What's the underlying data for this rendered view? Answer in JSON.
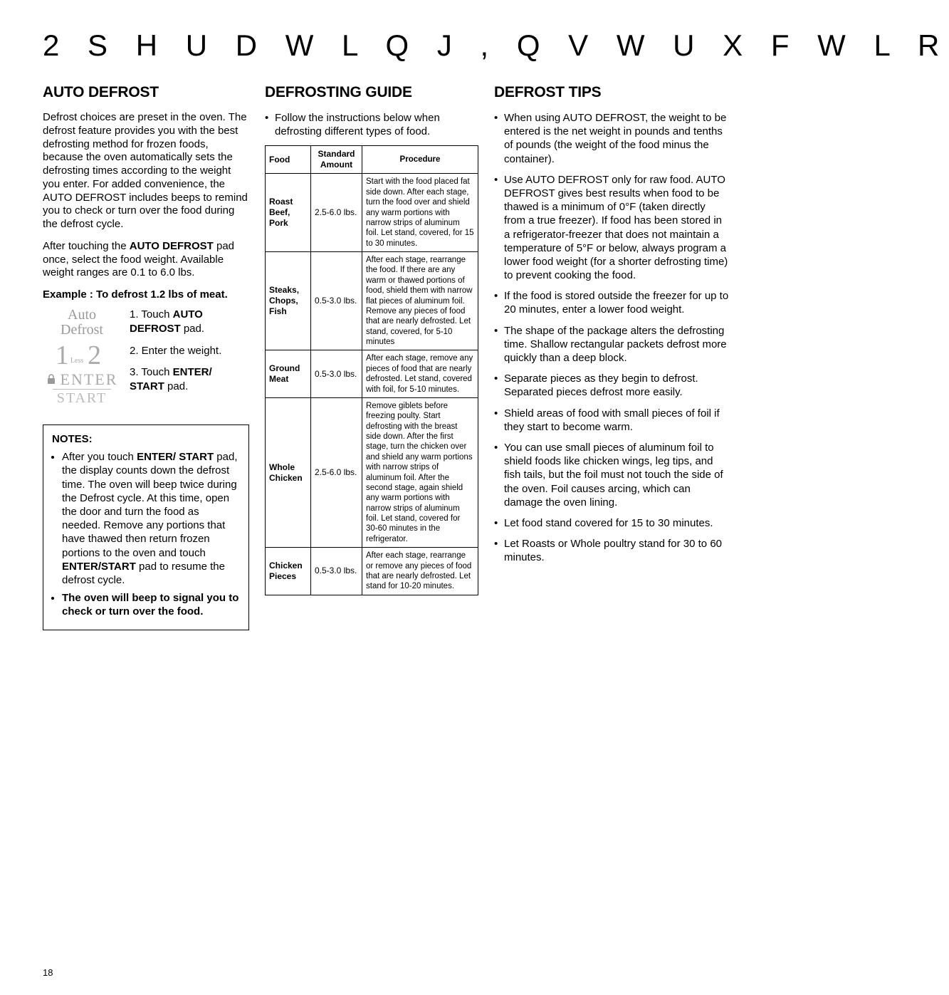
{
  "page_title": "2 S H U D W L Q J   , Q V W U X F W L R",
  "page_number": "18",
  "col1": {
    "heading": "Auto Defrost",
    "p1": "Defrost choices are preset in the oven. The defrost feature provides you with the best defrosting method for frozen foods, because the oven automatically sets the defrosting times according to the weight you enter. For added convenience, the AUTO DEFROST includes beeps to remind you to check or turn over the food during the defrost cycle.",
    "p2_pre": "After touching the ",
    "p2_bold": "AUTO DEFROST",
    "p2_post": " pad once, select the food weight. Available weight ranges are 0.1 to 6.0 lbs.",
    "example_head": "Example : To defrost 1.2 lbs of meat.",
    "ctrl_label_top": "Auto",
    "ctrl_label_bot": "Defrost",
    "ctrl_num1": "1",
    "ctrl_less": "Less",
    "ctrl_num2": "2",
    "ctrl_enter": "ENTER",
    "ctrl_start": "START",
    "step1_pre": "1. Touch ",
    "step1_b1": "AUTO",
    "step1_b2": "DEFROST",
    "step1_post": " pad.",
    "step2": "2. Enter the weight.",
    "step3_pre": "3. Touch ",
    "step3_b1": "ENTER/",
    "step3_b2": "START",
    "step3_post": " pad.",
    "notes_head": "NOTES:",
    "note1_pre": "After you touch ",
    "note1_bold": "ENTER/ START",
    "note1_post": " pad, the display counts down the defrost time. The oven will beep twice during the Defrost cycle. At this time, open the door and turn the food as needed. Remove any portions that have thawed then return frozen portions to the oven and touch ",
    "note1_bold2": "ENTER/START",
    "note1_post2": " pad to resume the defrost cycle.",
    "note2": "The oven will beep to signal you to check or turn over the food."
  },
  "col2": {
    "heading": "Defrosting Guide",
    "intro": "Follow the instructions below when defrosting different types of food.",
    "th1": "Food",
    "th2": "Standard Amount",
    "th3": "Procedure",
    "rows": [
      {
        "food": "Roast Beef, Pork",
        "amt": "2.5-6.0 lbs.",
        "proc": "Start with the food placed fat side down. After each stage, turn the food over and shield any warm portions with narrow strips of aluminum foil. Let stand, covered, for 15 to 30 minutes."
      },
      {
        "food": "Steaks, Chops, Fish",
        "amt": "0.5-3.0 lbs.",
        "proc": "After each stage, rearrange the food. If there are any warm or thawed portions of food, shield them with narrow flat  pieces of aluminum foil. Remove any pieces of food that are nearly defrosted. Let stand, covered, for 5-10 minutes"
      },
      {
        "food": "Ground Meat",
        "amt": "0.5-3.0 lbs.",
        "proc": "After each stage, remove any pieces of food that are nearly defrosted. Let stand, covered with foil, for 5-10 minutes."
      },
      {
        "food": "Whole Chicken",
        "amt": "2.5-6.0 lbs.",
        "proc": "Remove giblets before freezing poulty. Start defrosting with the breast side down. After the first stage, turn the chicken over and shield any warm portions with narrow strips of aluminum foil. After the second stage, again shield any warm portions with narrow strips of aluminum foil. Let stand, covered for 30-60 minutes in the refrigerator."
      },
      {
        "food": "Chicken Pieces",
        "amt": "0.5-3.0 lbs.",
        "proc": "After each stage, rearrange or remove any pieces of food that are nearly defrosted. Let stand for 10-20 minutes."
      }
    ]
  },
  "col3": {
    "heading": "Defrost Tips",
    "tips": [
      "When using AUTO DEFROST, the weight to be entered is the net weight in pounds and tenths of pounds (the weight of the food minus the container).",
      "Use AUTO DEFROST only for raw food. AUTO DEFROST gives best results when food to be thawed is a minimum of 0°F (taken directly from a true freezer). If food has been stored in a refrigerator-freezer that does not maintain a temperature of 5°F or below, always program a lower food weight (for a shorter defrosting time) to prevent cooking the food.",
      "If the food is stored outside the freezer for up to 20 minutes, enter a lower food weight.",
      "The shape of the package alters the defrosting time. Shallow rectangular packets defrost more quickly than a deep block.",
      "Separate pieces as they begin to defrost. Separated pieces defrost more easily.",
      "Shield areas of food with small pieces of foil if they start to become warm.",
      "You can use small pieces of alu­minum foil to shield foods like chicken wings, leg tips, and fish tails, but the foil must not touch the side of the oven. Foil causes arcing, which can damage the oven lining.",
      "Let food stand covered for 15 to 30 minutes.",
      "Let Roasts or Whole poultry stand for 30 to 60 minutes."
    ]
  }
}
